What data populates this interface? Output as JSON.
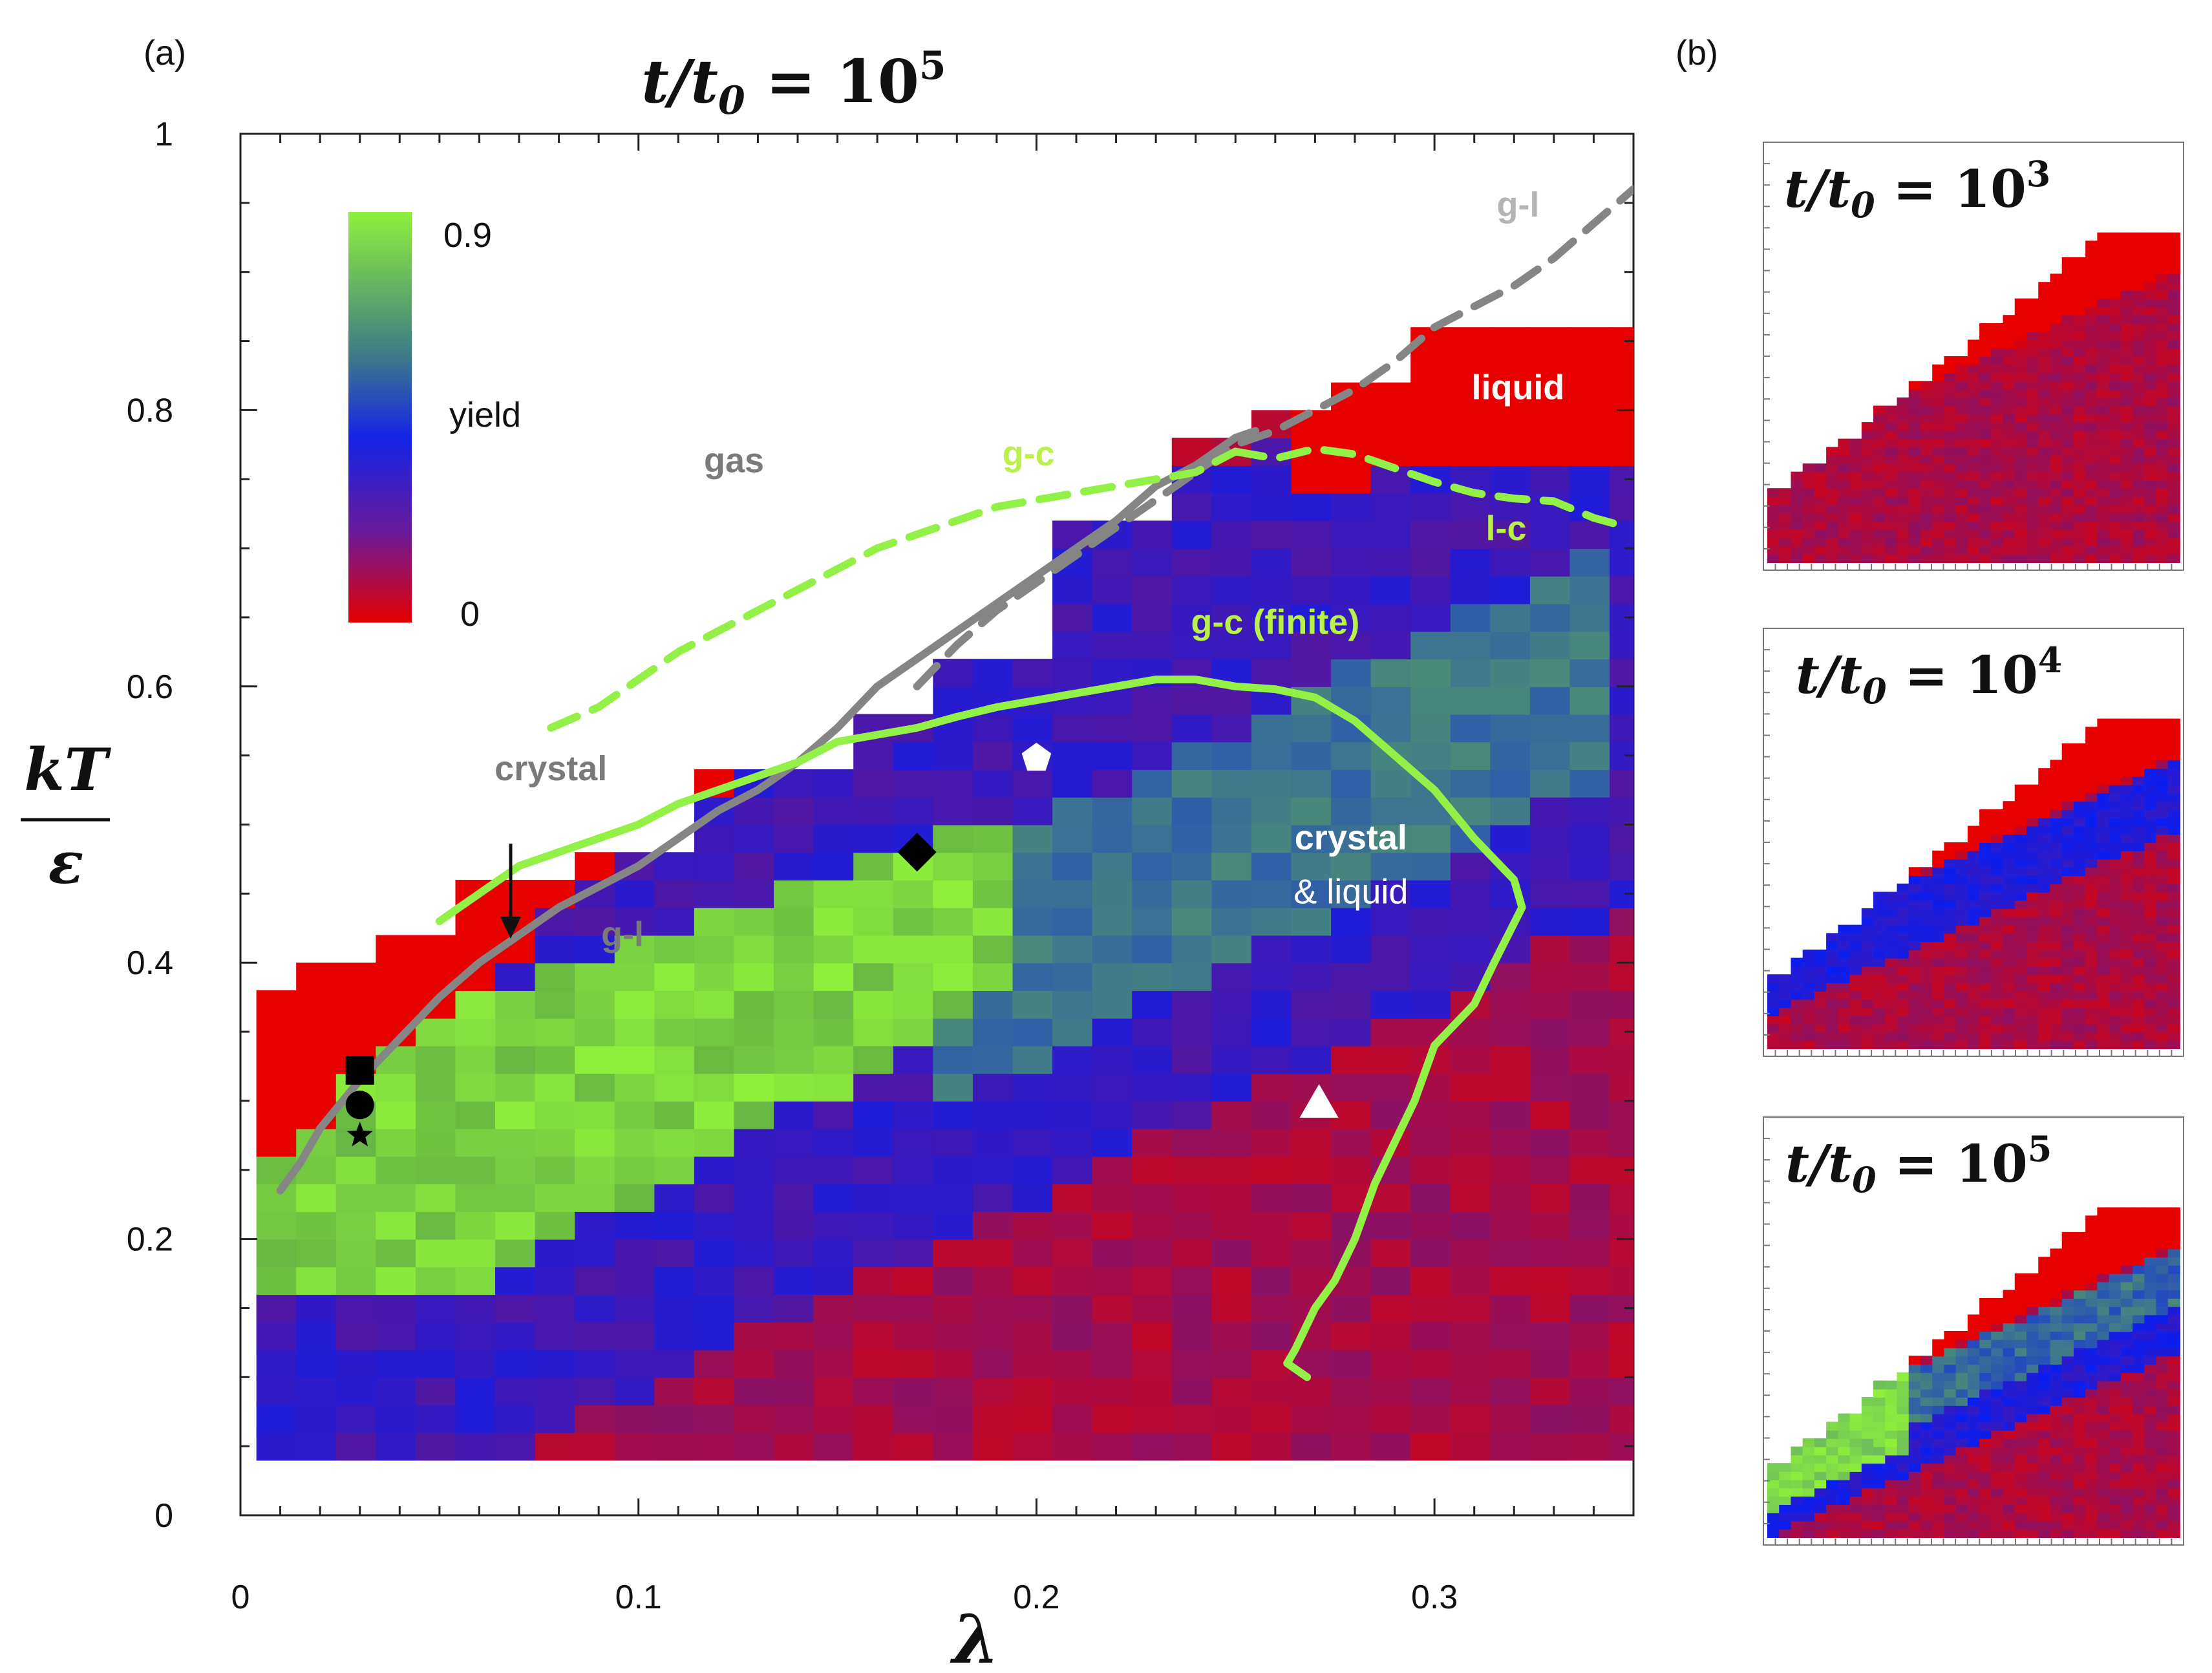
{
  "panel_a_label": "(a)",
  "panel_b_label": "(b)",
  "colors": {
    "red": "#e60000",
    "blue": "#0a1ef0",
    "purple": "#7a1478",
    "green": "#8ff03c",
    "teal": "#4a8a78",
    "gray_line": "#858585",
    "light_gray_text": "#b4b4b4",
    "green_text": "#b9f04a"
  },
  "chart_data": [
    {
      "type": "heatmap",
      "panel": "a",
      "title": "t/t₀ = 10⁵",
      "title_base": "t/t",
      "title_sub": "0",
      "title_eq": " = 10",
      "title_exp": "5",
      "xlabel": "λ",
      "ylabel_num": "kT",
      "ylabel_den": "ε",
      "xlim": [
        0,
        0.35
      ],
      "ylim": [
        0,
        1
      ],
      "xticks": [
        0,
        0.1,
        0.2,
        0.3
      ],
      "xtick_labels": [
        "0",
        "0.1",
        "0.2",
        "0.3"
      ],
      "yticks": [
        0,
        0.2,
        0.4,
        0.6,
        0.8,
        1
      ],
      "ytick_labels": [
        "0",
        "0.2",
        "0.4",
        "0.6",
        "0.8",
        "1"
      ],
      "colorbar": {
        "label": "yield",
        "max_label": "0.9",
        "min_label": "0",
        "range": [
          0,
          0.9
        ]
      },
      "region_labels": [
        {
          "text": "gas",
          "x": 0.124,
          "y": 0.755,
          "color": "gray"
        },
        {
          "text": "liquid",
          "x": 0.321,
          "y": 0.808,
          "color": "white"
        },
        {
          "text": "g-l",
          "x": 0.321,
          "y": 0.94,
          "color": "lightgray"
        },
        {
          "text": "g-c",
          "x": 0.198,
          "y": 0.76,
          "color": "green"
        },
        {
          "text": "l-c",
          "x": 0.318,
          "y": 0.706,
          "color": "green"
        },
        {
          "text": "g-c (finite)",
          "x": 0.26,
          "y": 0.638,
          "color": "green"
        },
        {
          "text": "crystal",
          "x": 0.078,
          "y": 0.532,
          "color": "gray"
        },
        {
          "text": "crystal",
          "x": 0.279,
          "y": 0.482,
          "color": "white"
        },
        {
          "text": "& liquid",
          "x": 0.279,
          "y": 0.443,
          "color": "white"
        },
        {
          "text": "g-l",
          "x": 0.096,
          "y": 0.412,
          "color": "gray"
        }
      ],
      "boundary_lines": [
        {
          "name": "g-l (solid)",
          "style": "solid",
          "color": "gray",
          "x": [
            0.01,
            0.015,
            0.02,
            0.03,
            0.04,
            0.05,
            0.06,
            0.07,
            0.08,
            0.09,
            0.1,
            0.11,
            0.12,
            0.13,
            0.14,
            0.15,
            0.16,
            0.17,
            0.18,
            0.19,
            0.2,
            0.21,
            0.22,
            0.23,
            0.24,
            0.25,
            0.255
          ],
          "y": [
            0.235,
            0.255,
            0.28,
            0.315,
            0.345,
            0.375,
            0.4,
            0.42,
            0.44,
            0.455,
            0.47,
            0.49,
            0.51,
            0.525,
            0.545,
            0.57,
            0.6,
            0.62,
            0.64,
            0.66,
            0.68,
            0.7,
            0.72,
            0.745,
            0.76,
            0.78,
            0.785
          ]
        },
        {
          "name": "g-l (dashed)",
          "style": "dashed",
          "color": "gray",
          "x": [
            0.17,
            0.18,
            0.19,
            0.2,
            0.21,
            0.22,
            0.23,
            0.24,
            0.25,
            0.26,
            0.27,
            0.28,
            0.29,
            0.3,
            0.31,
            0.32,
            0.33,
            0.34,
            0.35
          ],
          "y": [
            0.6,
            0.63,
            0.655,
            0.675,
            0.695,
            0.715,
            0.735,
            0.755,
            0.775,
            0.785,
            0.8,
            0.815,
            0.835,
            0.86,
            0.875,
            0.89,
            0.91,
            0.935,
            0.96
          ]
        },
        {
          "name": "g-c",
          "style": "dashed",
          "color": "green",
          "x": [
            0.078,
            0.09,
            0.1,
            0.11,
            0.12,
            0.13,
            0.14,
            0.15,
            0.16,
            0.17,
            0.18,
            0.19,
            0.2,
            0.21,
            0.22,
            0.23,
            0.24,
            0.25
          ],
          "y": [
            0.57,
            0.585,
            0.605,
            0.625,
            0.64,
            0.655,
            0.67,
            0.685,
            0.7,
            0.71,
            0.72,
            0.73,
            0.735,
            0.74,
            0.745,
            0.75,
            0.755,
            0.77
          ]
        },
        {
          "name": "l-c",
          "style": "dashed",
          "color": "green",
          "x": [
            0.25,
            0.26,
            0.27,
            0.28,
            0.29,
            0.3,
            0.31,
            0.32,
            0.33,
            0.34,
            0.345
          ],
          "y": [
            0.77,
            0.765,
            0.772,
            0.768,
            0.758,
            0.748,
            0.74,
            0.736,
            0.734,
            0.722,
            0.718
          ]
        },
        {
          "name": "crystal boundary (solid green)",
          "style": "solid",
          "color": "green",
          "x": [
            0.05,
            0.06,
            0.07,
            0.08,
            0.09,
            0.1,
            0.11,
            0.12,
            0.13,
            0.14,
            0.15,
            0.16,
            0.17,
            0.18,
            0.19,
            0.2,
            0.21,
            0.22,
            0.23,
            0.24,
            0.25,
            0.26,
            0.27,
            0.28,
            0.29,
            0.3,
            0.31,
            0.32,
            0.322,
            0.315,
            0.31,
            0.3,
            0.295,
            0.29,
            0.285,
            0.28,
            0.275,
            0.27,
            0.265,
            0.263,
            0.268
          ],
          "y": [
            0.43,
            0.45,
            0.47,
            0.48,
            0.49,
            0.5,
            0.515,
            0.525,
            0.535,
            0.545,
            0.56,
            0.565,
            0.57,
            0.578,
            0.585,
            0.59,
            0.595,
            0.6,
            0.605,
            0.605,
            0.6,
            0.598,
            0.592,
            0.575,
            0.55,
            0.525,
            0.49,
            0.46,
            0.44,
            0.4,
            0.37,
            0.34,
            0.3,
            0.27,
            0.24,
            0.2,
            0.17,
            0.15,
            0.12,
            0.11,
            0.1
          ]
        }
      ],
      "markers": [
        {
          "shape": "square",
          "color": "black",
          "x": 0.03,
          "y": 0.322
        },
        {
          "shape": "circle",
          "color": "black",
          "x": 0.03,
          "y": 0.297
        },
        {
          "shape": "star",
          "color": "black",
          "x": 0.03,
          "y": 0.275
        },
        {
          "shape": "diamond",
          "color": "black",
          "x": 0.17,
          "y": 0.48
        },
        {
          "shape": "pentagon",
          "color": "white",
          "x": 0.2,
          "y": 0.548
        },
        {
          "shape": "triangle",
          "color": "white",
          "x": 0.271,
          "y": 0.299
        }
      ]
    },
    {
      "type": "heatmap",
      "panel": "b1",
      "title": "t/t₀ = 10³",
      "title_base": "t/t",
      "title_sub": "0",
      "title_eq": " = 10",
      "title_exp": "3",
      "xlim": [
        0,
        0.35
      ],
      "ylim": [
        0,
        1
      ]
    },
    {
      "type": "heatmap",
      "panel": "b2",
      "title": "t/t₀ = 10⁴",
      "title_base": "t/t",
      "title_sub": "0",
      "title_eq": " = 10",
      "title_exp": "4",
      "xlim": [
        0,
        0.35
      ],
      "ylim": [
        0,
        1
      ]
    },
    {
      "type": "heatmap",
      "panel": "b3",
      "title": "t/t₀ = 10⁵",
      "title_base": "t/t",
      "title_sub": "0",
      "title_eq": " = 10",
      "title_exp": "5",
      "xlim": [
        0,
        0.35
      ],
      "ylim": [
        0,
        1
      ]
    }
  ]
}
